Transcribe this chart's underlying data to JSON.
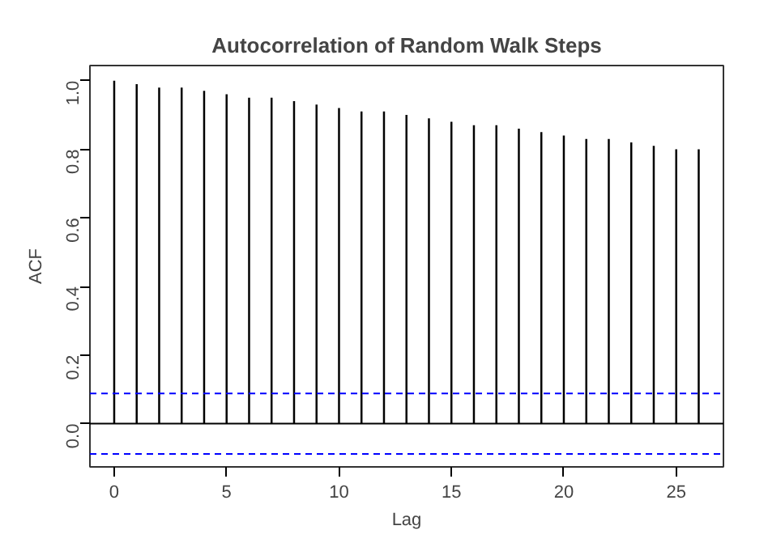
{
  "chart_data": {
    "type": "bar",
    "title": "Autocorrelation of Random Walk Steps",
    "xlabel": "Lag",
    "ylabel": "ACF",
    "x": [
      0,
      1,
      2,
      3,
      4,
      5,
      6,
      7,
      8,
      9,
      10,
      11,
      12,
      13,
      14,
      15,
      16,
      17,
      18,
      19,
      20,
      21,
      22,
      23,
      24,
      25,
      26
    ],
    "series": [
      {
        "color": "#000000",
        "values": [
          1.0,
          0.99,
          0.98,
          0.98,
          0.97,
          0.96,
          0.95,
          0.95,
          0.94,
          0.93,
          0.92,
          0.91,
          0.91,
          0.9,
          0.89,
          0.88,
          0.87,
          0.87,
          0.86,
          0.85,
          0.84,
          0.83,
          0.83,
          0.82,
          0.81,
          0.8,
          0.8
        ]
      }
    ],
    "xlim": [
      -1.08,
      27.1
    ],
    "ylim": [
      -0.126,
      1.044
    ],
    "xticks": [
      0,
      5,
      10,
      15,
      20,
      25
    ],
    "yticks": [
      {
        "value": 0,
        "label": "0.0"
      },
      0.2,
      0.4,
      0.6,
      0.8,
      {
        "value": 1,
        "label": "1.0"
      }
    ],
    "ref_lines": [
      {
        "axis": "y",
        "value": 0,
        "color": "#000000",
        "line_style": "solid"
      },
      {
        "axis": "y",
        "value": 0.088,
        "color": "#0000ff",
        "line_style": "dashed"
      },
      {
        "axis": "y",
        "value": -0.088,
        "color": "#0000ff",
        "line_style": "dashed"
      }
    ],
    "grid": false
  }
}
